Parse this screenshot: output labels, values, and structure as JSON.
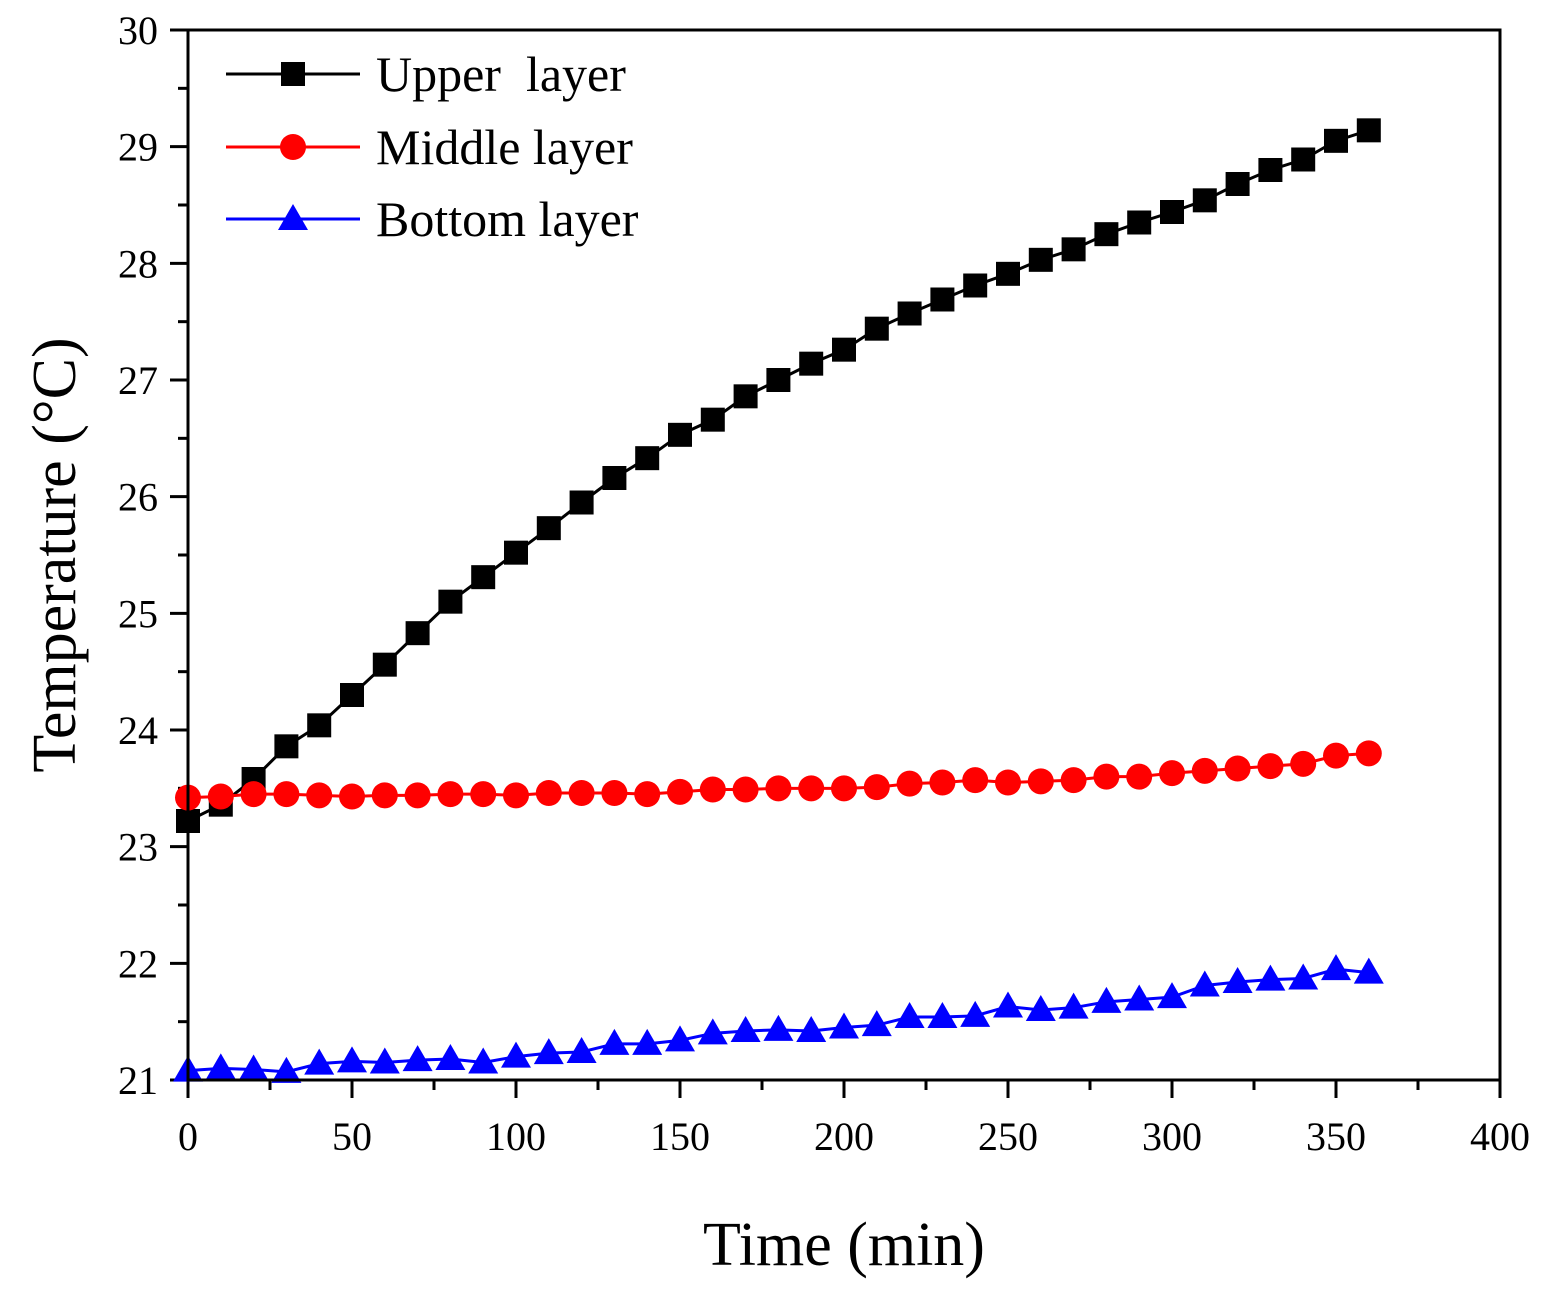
{
  "chart_data": {
    "type": "line",
    "title": "",
    "xlabel": "Time (min)",
    "ylabel": "Temperature (°C)",
    "xlim": [
      0,
      400
    ],
    "ylim": [
      21,
      30
    ],
    "xticks": [
      0,
      50,
      100,
      150,
      200,
      250,
      300,
      350,
      400
    ],
    "yticks": [
      21,
      22,
      23,
      24,
      25,
      26,
      27,
      28,
      29,
      30
    ],
    "grid": false,
    "legend_position": "top-left",
    "x": [
      0,
      10,
      20,
      30,
      40,
      50,
      60,
      70,
      80,
      90,
      100,
      110,
      120,
      130,
      140,
      150,
      160,
      170,
      180,
      190,
      200,
      210,
      220,
      230,
      240,
      250,
      260,
      270,
      280,
      290,
      300,
      310,
      320,
      330,
      340,
      350,
      360
    ],
    "series": [
      {
        "name": "Upper  layer",
        "color": "#000000",
        "marker": "square",
        "values": [
          23.22,
          23.36,
          23.58,
          23.86,
          24.04,
          24.3,
          24.56,
          24.83,
          25.1,
          25.31,
          25.52,
          25.73,
          25.95,
          26.16,
          26.33,
          26.53,
          26.66,
          26.86,
          27.0,
          27.14,
          27.26,
          27.44,
          27.57,
          27.69,
          27.81,
          27.91,
          28.03,
          28.12,
          28.25,
          28.35,
          28.44,
          28.54,
          28.68,
          28.8,
          28.89,
          29.05,
          29.14
        ]
      },
      {
        "name": "Middle layer",
        "color": "#ff0000",
        "marker": "circle",
        "values": [
          23.42,
          23.43,
          23.45,
          23.45,
          23.44,
          23.43,
          23.44,
          23.44,
          23.45,
          23.45,
          23.44,
          23.46,
          23.46,
          23.46,
          23.45,
          23.47,
          23.49,
          23.49,
          23.5,
          23.5,
          23.5,
          23.51,
          23.54,
          23.55,
          23.57,
          23.55,
          23.56,
          23.57,
          23.6,
          23.6,
          23.63,
          23.65,
          23.67,
          23.69,
          23.71,
          23.78,
          23.8
        ]
      },
      {
        "name": "Bottom layer",
        "color": "#0000ff",
        "marker": "triangle",
        "values": [
          21.08,
          21.1,
          21.09,
          21.07,
          21.14,
          21.16,
          21.15,
          21.17,
          21.18,
          21.15,
          21.2,
          21.23,
          21.24,
          21.31,
          21.31,
          21.34,
          21.4,
          21.42,
          21.43,
          21.42,
          21.45,
          21.47,
          21.54,
          21.54,
          21.55,
          21.63,
          21.6,
          21.62,
          21.67,
          21.69,
          21.71,
          21.81,
          21.84,
          21.86,
          21.87,
          21.95,
          21.92
        ]
      }
    ]
  }
}
